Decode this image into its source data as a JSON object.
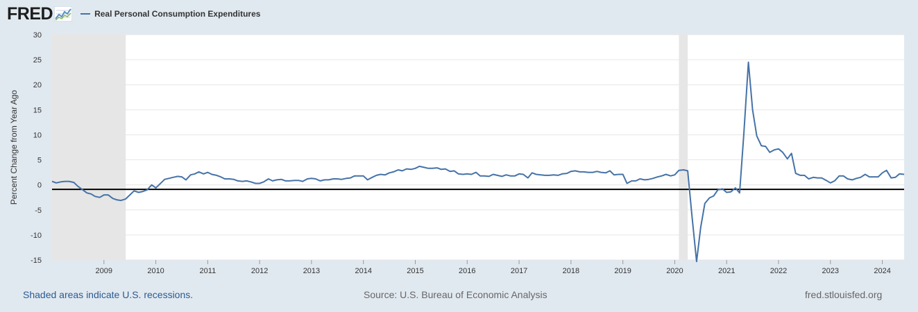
{
  "header": {
    "logo_text": "FRED",
    "logo_icon": "line-chart-icon",
    "series_label": "Real Personal Consumption Expenditures"
  },
  "chart_data": {
    "type": "line",
    "title": "",
    "ylabel": "Percent Change from Year Ago",
    "xlabel": "",
    "ylim": [
      -15,
      30
    ],
    "xlim": [
      2008.0,
      2024.42
    ],
    "yticks": [
      -15,
      -10,
      -5,
      0,
      5,
      10,
      15,
      20,
      25,
      30
    ],
    "ytick_labels": [
      "-15",
      "-10",
      "-5",
      "0",
      "5",
      "10",
      "15",
      "20",
      "25",
      "30"
    ],
    "xticks": [
      2009,
      2010,
      2011,
      2012,
      2013,
      2014,
      2015,
      2016,
      2017,
      2018,
      2019,
      2020,
      2021,
      2022,
      2023,
      2024
    ],
    "xtick_labels": [
      "2009",
      "2010",
      "2011",
      "2012",
      "2013",
      "2014",
      "2015",
      "2016",
      "2017",
      "2018",
      "2019",
      "2020",
      "2021",
      "2022",
      "2023",
      "2024"
    ],
    "zero_line_value": -0.9,
    "recessions": [
      {
        "start": 2008.0,
        "end": 2009.42
      },
      {
        "start": 2020.08,
        "end": 2020.25
      }
    ],
    "series": [
      {
        "name": "Real Personal Consumption Expenditures",
        "color": "#4572a7",
        "points": [
          [
            2008.0,
            0.7
          ],
          [
            2008.08,
            0.4
          ],
          [
            2008.17,
            0.6
          ],
          [
            2008.25,
            0.7
          ],
          [
            2008.33,
            0.7
          ],
          [
            2008.42,
            0.5
          ],
          [
            2008.5,
            -0.3
          ],
          [
            2008.58,
            -0.9
          ],
          [
            2008.67,
            -1.6
          ],
          [
            2008.75,
            -1.8
          ],
          [
            2008.83,
            -2.3
          ],
          [
            2008.92,
            -2.5
          ],
          [
            2009.0,
            -2.0
          ],
          [
            2009.08,
            -2.0
          ],
          [
            2009.17,
            -2.7
          ],
          [
            2009.25,
            -3.0
          ],
          [
            2009.33,
            -3.1
          ],
          [
            2009.42,
            -2.8
          ],
          [
            2009.5,
            -2.0
          ],
          [
            2009.58,
            -1.2
          ],
          [
            2009.67,
            -1.5
          ],
          [
            2009.75,
            -1.3
          ],
          [
            2009.83,
            -1.0
          ],
          [
            2009.92,
            0.0
          ],
          [
            2010.0,
            -0.6
          ],
          [
            2010.08,
            0.2
          ],
          [
            2010.17,
            1.1
          ],
          [
            2010.25,
            1.3
          ],
          [
            2010.33,
            1.5
          ],
          [
            2010.42,
            1.7
          ],
          [
            2010.5,
            1.6
          ],
          [
            2010.58,
            1.0
          ],
          [
            2010.67,
            2.0
          ],
          [
            2010.75,
            2.2
          ],
          [
            2010.83,
            2.6
          ],
          [
            2010.92,
            2.2
          ],
          [
            2011.0,
            2.5
          ],
          [
            2011.08,
            2.1
          ],
          [
            2011.17,
            1.9
          ],
          [
            2011.25,
            1.6
          ],
          [
            2011.33,
            1.2
          ],
          [
            2011.42,
            1.2
          ],
          [
            2011.5,
            1.1
          ],
          [
            2011.58,
            0.8
          ],
          [
            2011.67,
            0.7
          ],
          [
            2011.75,
            0.8
          ],
          [
            2011.83,
            0.6
          ],
          [
            2011.92,
            0.3
          ],
          [
            2012.0,
            0.3
          ],
          [
            2012.08,
            0.6
          ],
          [
            2012.17,
            1.2
          ],
          [
            2012.25,
            0.8
          ],
          [
            2012.33,
            1.0
          ],
          [
            2012.42,
            1.1
          ],
          [
            2012.5,
            0.8
          ],
          [
            2012.58,
            0.8
          ],
          [
            2012.67,
            0.9
          ],
          [
            2012.75,
            0.9
          ],
          [
            2012.83,
            0.7
          ],
          [
            2012.92,
            1.2
          ],
          [
            2013.0,
            1.3
          ],
          [
            2013.08,
            1.2
          ],
          [
            2013.17,
            0.8
          ],
          [
            2013.25,
            1.0
          ],
          [
            2013.33,
            1.0
          ],
          [
            2013.42,
            1.2
          ],
          [
            2013.5,
            1.2
          ],
          [
            2013.58,
            1.1
          ],
          [
            2013.67,
            1.3
          ],
          [
            2013.75,
            1.4
          ],
          [
            2013.83,
            1.8
          ],
          [
            2013.92,
            1.8
          ],
          [
            2014.0,
            1.8
          ],
          [
            2014.08,
            1.0
          ],
          [
            2014.17,
            1.5
          ],
          [
            2014.25,
            1.9
          ],
          [
            2014.33,
            2.1
          ],
          [
            2014.42,
            2.0
          ],
          [
            2014.5,
            2.4
          ],
          [
            2014.58,
            2.6
          ],
          [
            2014.67,
            3.0
          ],
          [
            2014.75,
            2.8
          ],
          [
            2014.83,
            3.2
          ],
          [
            2014.92,
            3.1
          ],
          [
            2015.0,
            3.3
          ],
          [
            2015.08,
            3.7
          ],
          [
            2015.17,
            3.5
          ],
          [
            2015.25,
            3.3
          ],
          [
            2015.33,
            3.3
          ],
          [
            2015.42,
            3.4
          ],
          [
            2015.5,
            3.1
          ],
          [
            2015.58,
            3.2
          ],
          [
            2015.67,
            2.7
          ],
          [
            2015.75,
            2.8
          ],
          [
            2015.83,
            2.2
          ],
          [
            2015.92,
            2.1
          ],
          [
            2016.0,
            2.2
          ],
          [
            2016.08,
            2.1
          ],
          [
            2016.17,
            2.5
          ],
          [
            2016.25,
            1.8
          ],
          [
            2016.33,
            1.8
          ],
          [
            2016.42,
            1.7
          ],
          [
            2016.5,
            2.1
          ],
          [
            2016.58,
            1.9
          ],
          [
            2016.67,
            1.7
          ],
          [
            2016.75,
            2.0
          ],
          [
            2016.83,
            1.8
          ],
          [
            2016.92,
            1.8
          ],
          [
            2017.0,
            2.2
          ],
          [
            2017.08,
            2.1
          ],
          [
            2017.17,
            1.4
          ],
          [
            2017.25,
            2.4
          ],
          [
            2017.33,
            2.1
          ],
          [
            2017.42,
            2.0
          ],
          [
            2017.5,
            1.9
          ],
          [
            2017.58,
            1.9
          ],
          [
            2017.67,
            2.0
          ],
          [
            2017.75,
            1.9
          ],
          [
            2017.83,
            2.2
          ],
          [
            2017.92,
            2.3
          ],
          [
            2018.0,
            2.7
          ],
          [
            2018.08,
            2.8
          ],
          [
            2018.17,
            2.6
          ],
          [
            2018.25,
            2.6
          ],
          [
            2018.33,
            2.5
          ],
          [
            2018.42,
            2.5
          ],
          [
            2018.5,
            2.7
          ],
          [
            2018.58,
            2.5
          ],
          [
            2018.67,
            2.4
          ],
          [
            2018.75,
            2.8
          ],
          [
            2018.83,
            2.0
          ],
          [
            2018.92,
            2.1
          ],
          [
            2019.0,
            2.1
          ],
          [
            2019.08,
            0.3
          ],
          [
            2019.17,
            0.8
          ],
          [
            2019.25,
            0.8
          ],
          [
            2019.33,
            1.2
          ],
          [
            2019.42,
            1.0
          ],
          [
            2019.5,
            1.1
          ],
          [
            2019.58,
            1.3
          ],
          [
            2019.67,
            1.6
          ],
          [
            2019.75,
            1.8
          ],
          [
            2019.83,
            2.1
          ],
          [
            2019.92,
            1.8
          ],
          [
            2020.0,
            2.0
          ],
          [
            2020.08,
            2.9
          ],
          [
            2020.17,
            3.0
          ],
          [
            2020.25,
            2.8
          ],
          [
            2020.33,
            -6.0
          ],
          [
            2020.42,
            -15.3
          ],
          [
            2020.5,
            -8.5
          ],
          [
            2020.58,
            -3.7
          ],
          [
            2020.67,
            -2.6
          ],
          [
            2020.75,
            -2.2
          ],
          [
            2020.83,
            -1.0
          ],
          [
            2020.92,
            -0.8
          ],
          [
            2021.0,
            -1.5
          ],
          [
            2021.08,
            -1.4
          ],
          [
            2021.17,
            -0.6
          ],
          [
            2021.25,
            -1.6
          ],
          [
            2021.33,
            10.0
          ],
          [
            2021.42,
            24.5
          ],
          [
            2021.5,
            15.0
          ],
          [
            2021.58,
            9.8
          ],
          [
            2021.67,
            7.8
          ],
          [
            2021.75,
            7.7
          ],
          [
            2021.83,
            6.5
          ],
          [
            2021.92,
            7.0
          ],
          [
            2022.0,
            7.2
          ],
          [
            2022.08,
            6.5
          ],
          [
            2022.17,
            5.2
          ],
          [
            2022.25,
            6.3
          ],
          [
            2022.33,
            2.3
          ],
          [
            2022.42,
            1.9
          ],
          [
            2022.5,
            1.9
          ],
          [
            2022.58,
            1.2
          ],
          [
            2022.67,
            1.5
          ],
          [
            2022.75,
            1.4
          ],
          [
            2022.83,
            1.4
          ],
          [
            2022.92,
            0.9
          ],
          [
            2023.0,
            0.4
          ],
          [
            2023.08,
            0.8
          ],
          [
            2023.17,
            1.8
          ],
          [
            2023.25,
            1.8
          ],
          [
            2023.33,
            1.2
          ],
          [
            2023.42,
            1.0
          ],
          [
            2023.5,
            1.3
          ],
          [
            2023.58,
            1.5
          ],
          [
            2023.67,
            2.1
          ],
          [
            2023.75,
            1.6
          ],
          [
            2023.83,
            1.6
          ],
          [
            2023.92,
            1.6
          ],
          [
            2024.0,
            2.4
          ],
          [
            2024.08,
            2.9
          ],
          [
            2024.17,
            1.4
          ],
          [
            2024.25,
            1.5
          ],
          [
            2024.33,
            2.2
          ],
          [
            2024.42,
            2.1
          ]
        ]
      }
    ]
  },
  "footer": {
    "recessions_note": "Shaded areas indicate U.S. recessions.",
    "source": "Source: U.S. Bureau of Economic Analysis",
    "site": "fred.stlouisfed.org"
  },
  "colors": {
    "background": "#e1e9f0",
    "plot_background": "#ffffff",
    "recession_shading": "#e6e6e6",
    "gridline": "#e6e6e6",
    "series": "#4572a7",
    "zero_line": "#000000",
    "link": "#2a5a92"
  }
}
